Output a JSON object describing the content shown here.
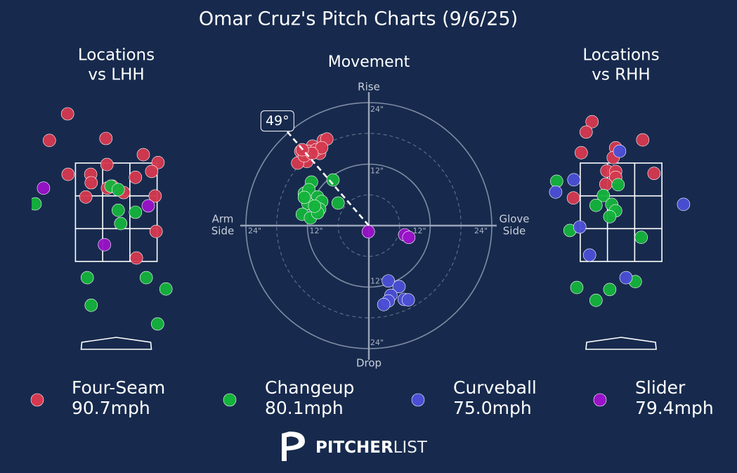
{
  "title": "Omar Cruz's Pitch Charts (9/6/25)",
  "pitch_types": [
    {
      "name": "Four-Seam",
      "color": "#d5394f",
      "speed": "90.7mph"
    },
    {
      "name": "Changeup",
      "color": "#14b33b",
      "speed": "80.1mph"
    },
    {
      "name": "Curveball",
      "color": "#4b4fd6",
      "speed": "75.0mph"
    },
    {
      "name": "Slider",
      "color": "#9a12c9",
      "speed": "79.4mph"
    }
  ],
  "brand": {
    "bold": "PITCHER",
    "light": "LIST"
  },
  "chart_data": [
    {
      "type": "location",
      "title": [
        "Locations",
        "vs LHH"
      ],
      "xlim": [
        -1.7,
        1.7
      ],
      "ylim": [
        -0.3,
        4.7
      ],
      "zone": {
        "x": [
          -0.83,
          0.83
        ],
        "y": [
          1.5,
          3.5
        ]
      },
      "series": [
        {
          "x": [
            -0.99,
            -1.36,
            -0.21,
            0.55,
            0.85,
            -0.98,
            -0.52,
            -0.19,
            0.72,
            -0.51,
            0.39,
            -0.18,
            0.15,
            -0.62,
            0.79,
            0.81,
            0.41,
            -0.08
          ],
          "y": [
            4.5,
            3.96,
            4.0,
            3.67,
            3.51,
            3.27,
            3.27,
            3.47,
            3.33,
            3.1,
            3.21,
            2.99,
            2.9,
            2.81,
            2.83,
            2.11,
            1.57,
            3.03
          ]
        },
        {
          "x": [
            -0.11,
            0.04,
            0.04,
            0.39,
            0.09,
            -0.59,
            0.61,
            1.01,
            -0.51,
            0.84,
            -1.65
          ],
          "y": [
            3.03,
            2.96,
            2.54,
            2.5,
            2.27,
            1.17,
            1.17,
            0.94,
            0.61,
            0.23,
            2.67
          ]
        },
        {
          "x": [],
          "y": []
        },
        {
          "x": [
            -1.48,
            0.65,
            -0.24
          ],
          "y": [
            2.99,
            2.63,
            1.84
          ]
        }
      ]
    },
    {
      "type": "movement",
      "title": [
        "Movement"
      ],
      "xlim": [
        -24,
        24
      ],
      "ylim": [
        -24,
        24
      ],
      "rings": [
        6,
        12,
        18,
        24
      ],
      "ring_labels": [
        {
          "value": 12,
          "label": "12\""
        },
        {
          "value": 24,
          "label": "24\""
        }
      ],
      "axis_labels": {
        "top": [
          "Rise"
        ],
        "bottom": [
          "Drop"
        ],
        "left": [
          "Arm",
          "Side"
        ],
        "right": [
          "Glove",
          "Side"
        ]
      },
      "angle": {
        "value": 49,
        "label": "49°"
      },
      "series": [
        {
          "x": [
            -13.3,
            -11,
            -8.9,
            -8.2,
            -9.6,
            -12.1,
            -13.9,
            -11.7,
            -10.3,
            -12.6,
            -9.2,
            -11.1,
            -13
          ],
          "y": [
            14.5,
            15.5,
            16.6,
            16.9,
            14.1,
            12.5,
            12.2,
            14.5,
            14.8,
            13.6,
            15.2,
            14.1,
            14.8
          ]
        },
        {
          "x": [
            -7,
            -11.2,
            -12.6,
            -11.7,
            -10,
            -9.2,
            -6,
            -11.9,
            -9.6,
            -13,
            -11.4,
            -10,
            -12.6,
            -10.6
          ],
          "y": [
            8.9,
            8.5,
            6.3,
            7,
            5.6,
            4.7,
            4.4,
            4.3,
            3.2,
            2.2,
            1.5,
            2.5,
            5.5,
            3.8
          ]
        },
        {
          "x": [
            3.8,
            5.9,
            4.3,
            3.8,
            2.9,
            6.9,
            7.7
          ],
          "y": [
            -10.8,
            -11.9,
            -13.6,
            -14.7,
            -15.4,
            -14.4,
            -14.5
          ]
        },
        {
          "x": [
            -0.1,
            7,
            7.8
          ],
          "y": [
            -1.2,
            -1.8,
            -2.3
          ]
        }
      ]
    },
    {
      "type": "location",
      "title": [
        "Locations",
        "vs RHH"
      ],
      "xlim": [
        -1.7,
        1.7
      ],
      "ylim": [
        -0.3,
        4.7
      ],
      "zone": {
        "x": [
          -0.83,
          0.83
        ],
        "y": [
          1.5,
          3.5
        ]
      },
      "series": [
        {
          "x": [
            -0.59,
            -0.71,
            0.44,
            -0.81,
            -0.11,
            -0.16,
            -0.29,
            -0.11,
            -0.11,
            -0.31,
            0.67,
            -0.97
          ],
          "y": [
            4.34,
            4.13,
            3.97,
            3.71,
            3.81,
            3.61,
            3.34,
            3.33,
            3.21,
            3.07,
            3.29,
            2.79
          ]
        },
        {
          "x": [
            -1.31,
            -0.06,
            -0.36,
            -0.19,
            -0.51,
            -0.11,
            -0.23,
            -1.04,
            0.41,
            -0.9,
            -0.23,
            -0.51,
            0.29
          ],
          "y": [
            3.13,
            3.06,
            2.84,
            2.66,
            2.64,
            2.53,
            2.41,
            2.13,
            1.99,
            0.97,
            0.93,
            0.71,
            1.09
          ]
        },
        {
          "x": [
            -0.03,
            -0.96,
            -1.33,
            1.27,
            -0.84,
            -0.64,
            0.1
          ],
          "y": [
            3.74,
            3.16,
            2.91,
            2.66,
            2.2,
            1.63,
            1.17
          ]
        },
        {
          "x": [],
          "y": []
        }
      ]
    }
  ]
}
